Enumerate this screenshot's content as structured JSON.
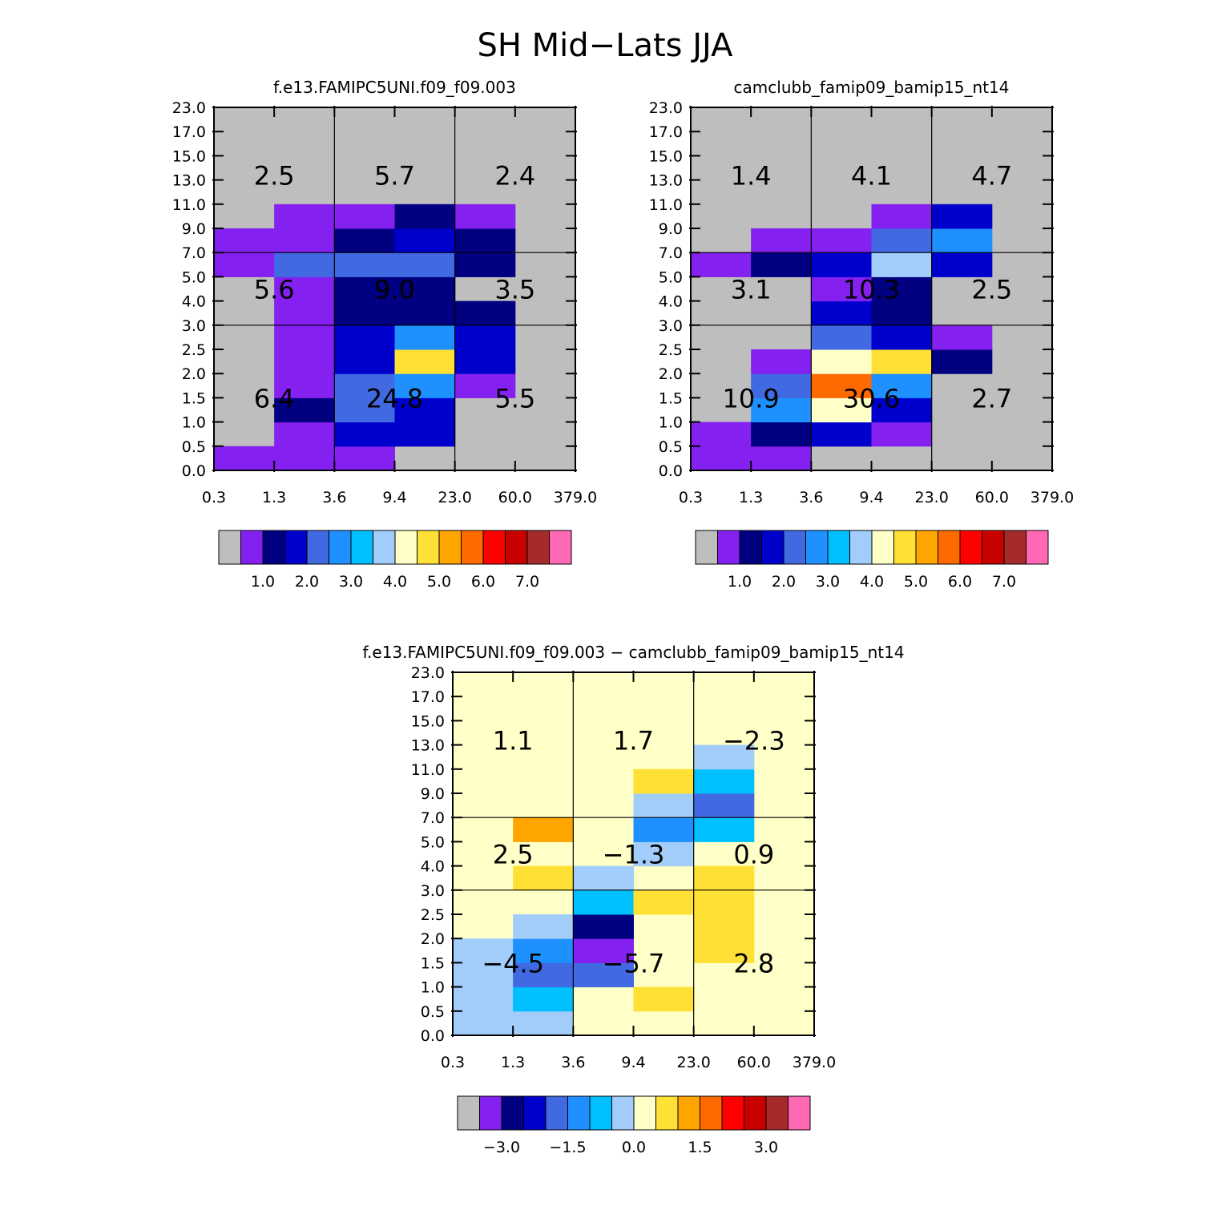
{
  "figure_title": "SH Mid−Lats JJA",
  "chart_data": [
    {
      "type": "heatmap",
      "title": "f.e13.FAMIPC5UNI.f09_f09.003",
      "x_ticks": [
        "0.3",
        "1.3",
        "3.6",
        "9.4",
        "23.0",
        "60.0",
        "379.0"
      ],
      "y_ticks": [
        "0.0",
        "0.5",
        "1.0",
        "1.5",
        "2.0",
        "2.5",
        "3.0",
        "4.0",
        "5.0",
        "7.0",
        "9.0",
        "11.0",
        "13.0",
        "15.0",
        "17.0",
        "23.0"
      ],
      "background": "#bebebe",
      "cells": [
        [
          0,
          0,
          "#8420f0"
        ],
        [
          1,
          0,
          "#8420f0"
        ],
        [
          2,
          0,
          "#8420f0"
        ],
        [
          1,
          1,
          "#8420f0"
        ],
        [
          2,
          1,
          "#0000cd"
        ],
        [
          3,
          1,
          "#0000cd"
        ],
        [
          1,
          2,
          "#000080"
        ],
        [
          2,
          2,
          "#4169e1"
        ],
        [
          3,
          2,
          "#0000cd"
        ],
        [
          1,
          3,
          "#8420f0"
        ],
        [
          2,
          3,
          "#4169e1"
        ],
        [
          3,
          3,
          "#1e90ff"
        ],
        [
          4,
          3,
          "#8420f0"
        ],
        [
          1,
          4,
          "#8420f0"
        ],
        [
          2,
          4,
          "#0000cd"
        ],
        [
          3,
          4,
          "#ffe135"
        ],
        [
          4,
          4,
          "#0000cd"
        ],
        [
          1,
          5,
          "#8420f0"
        ],
        [
          2,
          5,
          "#0000cd"
        ],
        [
          3,
          5,
          "#1e90ff"
        ],
        [
          4,
          5,
          "#0000cd"
        ],
        [
          1,
          6,
          "#8420f0"
        ],
        [
          2,
          6,
          "#000080"
        ],
        [
          3,
          6,
          "#000080"
        ],
        [
          4,
          6,
          "#000080"
        ],
        [
          1,
          7,
          "#8420f0"
        ],
        [
          2,
          7,
          "#000080"
        ],
        [
          3,
          7,
          "#000080"
        ],
        [
          0,
          8,
          "#8420f0"
        ],
        [
          1,
          8,
          "#4169e1"
        ],
        [
          2,
          8,
          "#4169e1"
        ],
        [
          3,
          8,
          "#4169e1"
        ],
        [
          4,
          8,
          "#000080"
        ],
        [
          0,
          9,
          "#8420f0"
        ],
        [
          1,
          9,
          "#8420f0"
        ],
        [
          2,
          9,
          "#000080"
        ],
        [
          3,
          9,
          "#0000cd"
        ],
        [
          4,
          9,
          "#000080"
        ],
        [
          1,
          10,
          "#8420f0"
        ],
        [
          2,
          10,
          "#8420f0"
        ],
        [
          3,
          10,
          "#000080"
        ],
        [
          4,
          10,
          "#8420f0"
        ]
      ],
      "region_labels": [
        {
          "col": 0,
          "row": "high",
          "value": "2.5"
        },
        {
          "col": 1,
          "row": "high",
          "value": "5.7"
        },
        {
          "col": 2,
          "row": "high",
          "value": "2.4"
        },
        {
          "col": 0,
          "row": "mid",
          "value": "5.6"
        },
        {
          "col": 1,
          "row": "mid",
          "value": "9.0"
        },
        {
          "col": 2,
          "row": "mid",
          "value": "3.5"
        },
        {
          "col": 0,
          "row": "low",
          "value": "6.4"
        },
        {
          "col": 1,
          "row": "low",
          "value": "24.8"
        },
        {
          "col": 2,
          "row": "low",
          "value": "5.5"
        }
      ],
      "colorbar": {
        "colors": [
          "#bebebe",
          "#8420f0",
          "#000080",
          "#0000cd",
          "#4169e1",
          "#1e90ff",
          "#00bfff",
          "#a2cdfa",
          "#ffffc8",
          "#ffe135",
          "#ffa500",
          "#ff6a00",
          "#ff0000",
          "#c80000",
          "#a52a2a",
          "#ff69b4"
        ],
        "labels": [
          "1.0",
          "2.0",
          "3.0",
          "4.0",
          "5.0",
          "6.0",
          "7.0"
        ],
        "label_start_box": 2
      }
    },
    {
      "type": "heatmap",
      "title": "camclubb_famip09_bamip15_nt14",
      "x_ticks": [
        "0.3",
        "1.3",
        "3.6",
        "9.4",
        "23.0",
        "60.0",
        "379.0"
      ],
      "y_ticks": [
        "0.0",
        "0.5",
        "1.0",
        "1.5",
        "2.0",
        "2.5",
        "3.0",
        "4.0",
        "5.0",
        "7.0",
        "9.0",
        "11.0",
        "13.0",
        "15.0",
        "17.0",
        "23.0"
      ],
      "background": "#bebebe",
      "cells": [
        [
          0,
          0,
          "#8420f0"
        ],
        [
          1,
          0,
          "#8420f0"
        ],
        [
          0,
          1,
          "#8420f0"
        ],
        [
          1,
          1,
          "#000080"
        ],
        [
          2,
          1,
          "#0000cd"
        ],
        [
          3,
          1,
          "#8420f0"
        ],
        [
          1,
          2,
          "#1e90ff"
        ],
        [
          2,
          2,
          "#ffffc8"
        ],
        [
          3,
          2,
          "#0000cd"
        ],
        [
          1,
          3,
          "#4169e1"
        ],
        [
          2,
          3,
          "#ff6a00"
        ],
        [
          3,
          3,
          "#1e90ff"
        ],
        [
          1,
          4,
          "#8420f0"
        ],
        [
          2,
          4,
          "#ffffc8"
        ],
        [
          3,
          4,
          "#ffe135"
        ],
        [
          4,
          4,
          "#000080"
        ],
        [
          2,
          5,
          "#4169e1"
        ],
        [
          3,
          5,
          "#0000cd"
        ],
        [
          4,
          5,
          "#8420f0"
        ],
        [
          2,
          6,
          "#0000cd"
        ],
        [
          3,
          6,
          "#000080"
        ],
        [
          2,
          7,
          "#8420f0"
        ],
        [
          3,
          7,
          "#000080"
        ],
        [
          0,
          8,
          "#8420f0"
        ],
        [
          1,
          8,
          "#000080"
        ],
        [
          2,
          8,
          "#0000cd"
        ],
        [
          3,
          8,
          "#a2cdfa"
        ],
        [
          4,
          8,
          "#0000cd"
        ],
        [
          1,
          9,
          "#8420f0"
        ],
        [
          2,
          9,
          "#8420f0"
        ],
        [
          3,
          9,
          "#4169e1"
        ],
        [
          4,
          9,
          "#1e90ff"
        ],
        [
          3,
          10,
          "#8420f0"
        ],
        [
          4,
          10,
          "#0000cd"
        ]
      ],
      "region_labels": [
        {
          "col": 0,
          "row": "high",
          "value": "1.4"
        },
        {
          "col": 1,
          "row": "high",
          "value": "4.1"
        },
        {
          "col": 2,
          "row": "high",
          "value": "4.7"
        },
        {
          "col": 0,
          "row": "mid",
          "value": "3.1"
        },
        {
          "col": 1,
          "row": "mid",
          "value": "10.3"
        },
        {
          "col": 2,
          "row": "mid",
          "value": "2.5"
        },
        {
          "col": 0,
          "row": "low",
          "value": "10.9"
        },
        {
          "col": 1,
          "row": "low",
          "value": "30.6"
        },
        {
          "col": 2,
          "row": "low",
          "value": "2.7"
        }
      ],
      "colorbar": {
        "colors": [
          "#bebebe",
          "#8420f0",
          "#000080",
          "#0000cd",
          "#4169e1",
          "#1e90ff",
          "#00bfff",
          "#a2cdfa",
          "#ffffc8",
          "#ffe135",
          "#ffa500",
          "#ff6a00",
          "#ff0000",
          "#c80000",
          "#a52a2a",
          "#ff69b4"
        ],
        "labels": [
          "1.0",
          "2.0",
          "3.0",
          "4.0",
          "5.0",
          "6.0",
          "7.0"
        ],
        "label_start_box": 2
      }
    },
    {
      "type": "heatmap",
      "title": "f.e13.FAMIPC5UNI.f09_f09.003 − camclubb_famip09_bamip15_nt14",
      "x_ticks": [
        "0.3",
        "1.3",
        "3.6",
        "9.4",
        "23.0",
        "60.0",
        "379.0"
      ],
      "y_ticks": [
        "0.0",
        "0.5",
        "1.0",
        "1.5",
        "2.0",
        "2.5",
        "3.0",
        "4.0",
        "5.0",
        "7.0",
        "9.0",
        "11.0",
        "13.0",
        "15.0",
        "17.0",
        "23.0"
      ],
      "background": "#ffffc8",
      "cells": [
        [
          0,
          0,
          "#a2cdfa"
        ],
        [
          1,
          0,
          "#a2cdfa"
        ],
        [
          0,
          1,
          "#a2cdfa"
        ],
        [
          1,
          1,
          "#00bfff"
        ],
        [
          3,
          1,
          "#ffe135"
        ],
        [
          0,
          2,
          "#a2cdfa"
        ],
        [
          1,
          2,
          "#4169e1"
        ],
        [
          2,
          2,
          "#4169e1"
        ],
        [
          0,
          3,
          "#a2cdfa"
        ],
        [
          1,
          3,
          "#1e90ff"
        ],
        [
          2,
          3,
          "#8420f0"
        ],
        [
          4,
          3,
          "#ffe135"
        ],
        [
          1,
          4,
          "#a2cdfa"
        ],
        [
          2,
          4,
          "#000080"
        ],
        [
          4,
          4,
          "#ffe135"
        ],
        [
          2,
          5,
          "#00bfff"
        ],
        [
          3,
          5,
          "#ffe135"
        ],
        [
          4,
          5,
          "#ffe135"
        ],
        [
          1,
          6,
          "#ffe135"
        ],
        [
          2,
          6,
          "#a2cdfa"
        ],
        [
          4,
          6,
          "#ffe135"
        ],
        [
          3,
          7,
          "#a2cdfa"
        ],
        [
          1,
          8,
          "#ffa500"
        ],
        [
          3,
          8,
          "#1e90ff"
        ],
        [
          4,
          8,
          "#00bfff"
        ],
        [
          3,
          9,
          "#a2cdfa"
        ],
        [
          4,
          9,
          "#4169e1"
        ],
        [
          3,
          10,
          "#ffe135"
        ],
        [
          4,
          10,
          "#00bfff"
        ],
        [
          4,
          11,
          "#a2cdfa"
        ]
      ],
      "region_labels": [
        {
          "col": 0,
          "row": "high",
          "value": "1.1"
        },
        {
          "col": 1,
          "row": "high",
          "value": "1.7"
        },
        {
          "col": 2,
          "row": "high",
          "value": "−2.3"
        },
        {
          "col": 0,
          "row": "mid",
          "value": "2.5"
        },
        {
          "col": 1,
          "row": "mid",
          "value": "−1.3"
        },
        {
          "col": 2,
          "row": "mid",
          "value": "0.9"
        },
        {
          "col": 0,
          "row": "low",
          "value": "−4.5"
        },
        {
          "col": 1,
          "row": "low",
          "value": "−5.7"
        },
        {
          "col": 2,
          "row": "low",
          "value": "2.8"
        }
      ],
      "colorbar": {
        "colors": [
          "#bebebe",
          "#8420f0",
          "#000080",
          "#0000cd",
          "#4169e1",
          "#1e90ff",
          "#00bfff",
          "#a2cdfa",
          "#ffffc8",
          "#ffe135",
          "#ffa500",
          "#ff6a00",
          "#ff0000",
          "#c80000",
          "#a52a2a",
          "#ff69b4"
        ],
        "labels": [
          "−3.0",
          "−1.5",
          "0.0",
          "1.5",
          "3.0"
        ],
        "label_start_box": 2,
        "label_every": 3
      }
    }
  ]
}
